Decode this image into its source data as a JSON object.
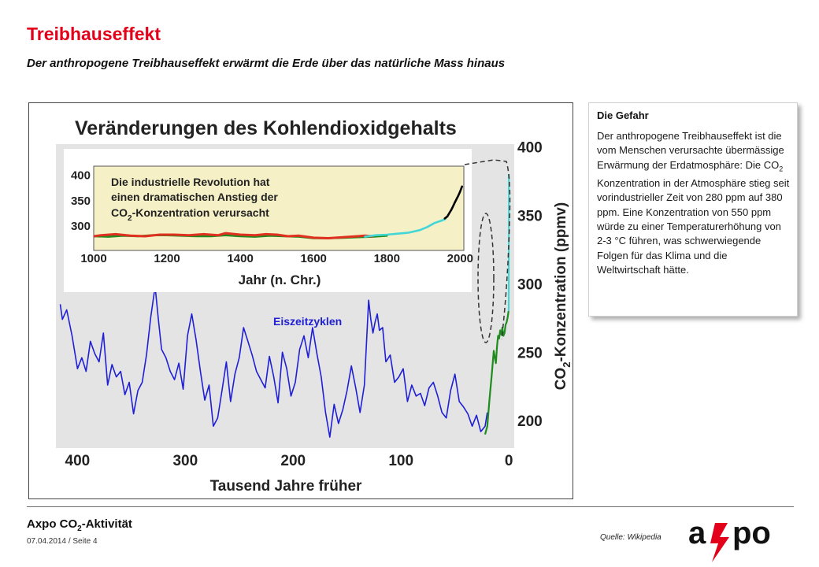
{
  "header": {
    "title": "Treibhauseffekt",
    "subtitle": "Der anthropogene Treibhauseffekt erwärmt die Erde über das natürliche Mass hinaus"
  },
  "infobox": {
    "heading": "Die Gefahr",
    "text_1": "Der anthropogene Treibhauseffekt ist die vom Menschen verursachte übermässige Erwärmung der Erdatmosphäre: Die CO",
    "sub": "2",
    "text_2": " Konzentration in der Atmosphäre stieg seit vorindustrieller Zeit von 280 ppm auf 380 ppm. Eine Konzentration von 550 ppm würde zu einer Temperaturerhöhung von 2-3 °C führen, was schwerwiegende Folgen für das Klima und die Weltwirtschaft hätte."
  },
  "footer": {
    "title_main": "Axpo CO",
    "title_sub": "2",
    "title_rest": "-Aktivität",
    "date": "07.04.2014 / Seite 4",
    "source": "Quelle: Wikipedia"
  },
  "logo": {
    "text": "axpo",
    "colors": {
      "text": "#111111",
      "bolt": "#e2001a"
    }
  },
  "colors": {
    "accent": "#e2001a"
  },
  "chart_data": [
    {
      "type": "line",
      "title": "Veränderungen des Kohlendioxidgehalts",
      "xlabel": "Tausend Jahre früher",
      "ylabel_main": "CO",
      "ylabel_sub": "2",
      "ylabel_rest": "-Konzentration (ppmv)",
      "x_reversed": true,
      "xlim": [
        420,
        -5
      ],
      "ylim": [
        180,
        402
      ],
      "x_ticks": [
        400,
        300,
        200,
        100,
        0
      ],
      "y_ticks": [
        200,
        250,
        300,
        350,
        400
      ],
      "annotation": "Eiszeitzyklen",
      "series": [
        {
          "color": "#1f1fd6",
          "x": [
            416,
            414,
            410,
            405,
            400,
            396,
            392,
            388,
            384,
            380,
            376,
            372,
            368,
            364,
            360,
            356,
            352,
            348,
            344,
            340,
            336,
            332,
            328,
            325,
            322,
            318,
            314,
            310,
            306,
            302,
            298,
            294,
            290,
            286,
            282,
            278,
            274,
            270,
            266,
            262,
            258,
            254,
            250,
            246,
            242,
            238,
            234,
            230,
            226,
            222,
            218,
            214,
            210,
            206,
            202,
            198,
            194,
            190,
            186,
            182,
            178,
            174,
            170,
            166,
            162,
            158,
            154,
            150,
            146,
            142,
            138,
            134,
            130,
            128,
            126,
            124,
            122,
            120,
            117,
            114,
            110,
            106,
            102,
            98,
            94,
            90,
            86,
            82,
            78,
            74,
            70,
            66,
            62,
            58,
            54,
            50,
            46,
            42,
            38,
            34,
            30,
            26,
            22,
            20
          ],
          "y": [
            285,
            274,
            281,
            262,
            238,
            246,
            236,
            258,
            249,
            243,
            264,
            226,
            241,
            232,
            236,
            219,
            228,
            205,
            222,
            228,
            248,
            276,
            298,
            274,
            252,
            246,
            236,
            230,
            242,
            223,
            262,
            278,
            259,
            236,
            215,
            226,
            196,
            202,
            222,
            243,
            214,
            234,
            246,
            268,
            258,
            248,
            236,
            230,
            224,
            247,
            232,
            213,
            250,
            238,
            218,
            228,
            252,
            262,
            246,
            268,
            249,
            232,
            206,
            188,
            212,
            198,
            208,
            222,
            240,
            224,
            206,
            226,
            288,
            274,
            264,
            272,
            278,
            266,
            268,
            243,
            248,
            228,
            232,
            238,
            214,
            226,
            218,
            220,
            211,
            224,
            228,
            218,
            206,
            202,
            222,
            234,
            214,
            210,
            205,
            196,
            204,
            192,
            196,
            206
          ]
        },
        {
          "color": "#1e8c1e",
          "x": [
            22,
            20,
            18,
            16,
            14,
            13,
            12,
            11,
            10,
            9,
            8,
            7,
            6,
            5,
            4,
            3,
            2,
            1,
            0.5,
            0.2
          ],
          "y": [
            190,
            196,
            215,
            232,
            251,
            246,
            242,
            254,
            262,
            260,
            266,
            263,
            268,
            262,
            264,
            270,
            272,
            276,
            279,
            280
          ]
        },
        {
          "color": "#44d6d6",
          "x": [
            0.2,
            0.15,
            0.1,
            0.05,
            0.02,
            0
          ],
          "y": [
            280,
            281,
            283,
            298,
            318,
            380
          ]
        }
      ]
    },
    {
      "type": "line",
      "title": "Die industrielle Revolution hat einen dramatischen Anstieg der CO2-Konzentration verursacht",
      "xlabel": "Jahr (n. Chr.)",
      "xlim": [
        1000,
        2010
      ],
      "ylim": [
        252,
        418
      ],
      "x_ticks": [
        1000,
        1200,
        1400,
        1600,
        1800,
        2000
      ],
      "y_ticks": [
        300,
        350,
        400
      ],
      "series": [
        {
          "color": "#1e8c1e",
          "x": [
            1000,
            1040,
            1080,
            1120,
            1160,
            1200,
            1240,
            1280,
            1320,
            1360,
            1400,
            1440,
            1480,
            1520,
            1560,
            1600,
            1640,
            1680,
            1720,
            1760,
            1800
          ],
          "y": [
            280,
            279,
            281,
            280,
            282,
            282,
            281,
            280,
            280,
            282,
            280,
            279,
            281,
            280,
            279,
            276,
            276,
            277,
            278,
            279,
            281
          ]
        },
        {
          "color": "#e03020",
          "x": [
            1000,
            1020,
            1060,
            1100,
            1140,
            1180,
            1220,
            1260,
            1300,
            1340,
            1360,
            1400,
            1440,
            1470,
            1500,
            1530,
            1560,
            1600,
            1640,
            1680,
            1720,
            1740,
            1760
          ],
          "y": [
            280,
            282,
            284,
            281,
            280,
            283,
            283,
            282,
            284,
            282,
            286,
            283,
            282,
            284,
            283,
            280,
            281,
            277,
            276,
            278,
            280,
            281,
            280
          ]
        },
        {
          "color": "#44d6d6",
          "x": [
            1740,
            1770,
            1800,
            1830,
            1860,
            1890,
            1910,
            1930,
            1950,
            1960
          ],
          "y": [
            279,
            282,
            283,
            285,
            287,
            292,
            298,
            306,
            311,
            314
          ]
        },
        {
          "color": "#000000",
          "x": [
            1958,
            1965,
            1970,
            1975,
            1980,
            1985,
            1990,
            1995,
            2000,
            2005
          ],
          "y": [
            315,
            319,
            325,
            331,
            338,
            346,
            353,
            360,
            368,
            378
          ]
        }
      ]
    }
  ]
}
